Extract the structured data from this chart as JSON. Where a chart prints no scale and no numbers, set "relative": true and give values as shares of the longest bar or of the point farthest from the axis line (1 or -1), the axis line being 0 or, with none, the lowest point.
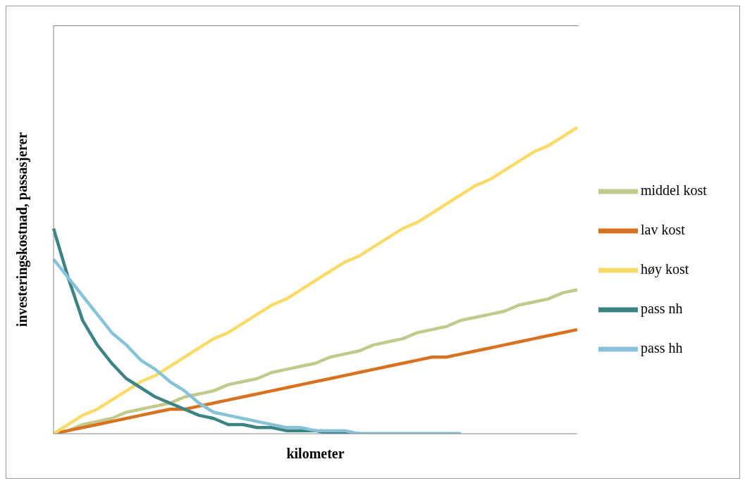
{
  "chart_data": {
    "type": "line",
    "xlabel": "kilometer",
    "ylabel": "investeringskostnad,  passasjerer",
    "relative": true,
    "legend": "right",
    "marker": "none",
    "line_style": "solid",
    "categories": [
      null,
      null,
      null,
      null,
      null,
      null,
      null,
      null,
      null,
      null,
      null,
      null,
      null,
      null,
      null,
      null,
      null,
      null,
      null,
      null,
      null,
      null,
      null,
      null,
      null,
      null,
      null,
      null,
      null,
      null,
      null,
      null,
      null,
      null,
      null,
      null,
      null
    ],
    "series": [
      {
        "name": "middel kost",
        "color": "#c3c98a",
        "values": [
          0,
          0.01,
          0.03,
          0.04,
          0.05,
          0.07,
          0.08,
          0.09,
          0.1,
          0.12,
          0.13,
          0.14,
          0.16,
          0.17,
          0.18,
          0.2,
          0.21,
          0.22,
          0.23,
          0.25,
          0.26,
          0.27,
          0.29,
          0.3,
          0.31,
          0.33,
          0.34,
          0.35,
          0.37,
          0.38,
          0.39,
          0.4,
          0.42,
          0.43,
          0.44,
          0.46,
          0.47
        ]
      },
      {
        "name": "lav kost",
        "color": "#d8721f",
        "values": [
          0,
          0.01,
          0.02,
          0.03,
          0.04,
          0.05,
          0.06,
          0.07,
          0.08,
          0.08,
          0.09,
          0.1,
          0.11,
          0.12,
          0.13,
          0.14,
          0.15,
          0.16,
          0.17,
          0.18,
          0.19,
          0.2,
          0.21,
          0.22,
          0.23,
          0.24,
          0.25,
          0.25,
          0.26,
          0.27,
          0.28,
          0.29,
          0.3,
          0.31,
          0.32,
          0.33,
          0.34
        ]
      },
      {
        "name": "høy kost",
        "color": "#fcda68",
        "values": [
          0,
          0.03,
          0.06,
          0.08,
          0.11,
          0.14,
          0.17,
          0.19,
          0.22,
          0.25,
          0.28,
          0.31,
          0.33,
          0.36,
          0.39,
          0.42,
          0.44,
          0.47,
          0.5,
          0.53,
          0.56,
          0.58,
          0.61,
          0.64,
          0.67,
          0.69,
          0.72,
          0.75,
          0.78,
          0.81,
          0.83,
          0.86,
          0.89,
          0.92,
          0.94,
          0.97,
          1
        ]
      },
      {
        "name": "pass nh",
        "color": "#3c8385",
        "values": [
          0.67,
          0.51,
          0.37,
          0.29,
          0.23,
          0.18,
          0.15,
          0.12,
          0.1,
          0.08,
          0.06,
          0.05,
          0.03,
          0.03,
          0.02,
          0.02,
          0.01,
          0.01,
          0.01,
          0,
          0,
          0,
          0,
          0,
          0,
          0,
          0,
          0,
          0,
          null,
          null,
          null,
          null,
          null,
          null,
          null,
          null
        ]
      },
      {
        "name": "pass hh",
        "color": "#86c3da",
        "values": [
          0.57,
          0.51,
          0.45,
          0.39,
          0.33,
          0.29,
          0.24,
          0.21,
          0.17,
          0.14,
          0.1,
          0.07,
          0.06,
          0.05,
          0.04,
          0.03,
          0.02,
          0.02,
          0.01,
          0.01,
          0.01,
          0,
          0,
          0,
          0,
          0,
          0,
          0,
          0,
          null,
          null,
          null,
          null,
          null,
          null,
          null,
          null
        ]
      }
    ]
  }
}
